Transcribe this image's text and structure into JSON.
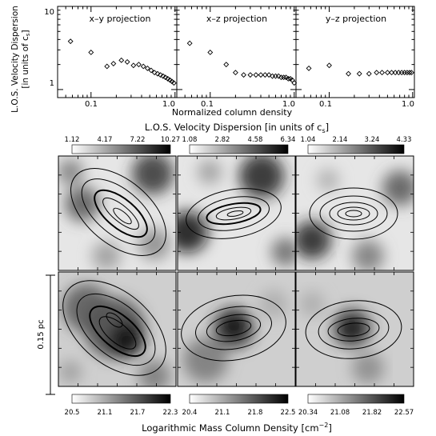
{
  "top_row": {
    "ylabel_line1": "L.O.S. Velocity Dispersion",
    "ylabel_line2": "[in units of c",
    "ylabel_sub": "s",
    "ylabel_close": "]",
    "xlabel": "Normalized column density",
    "y_tick_labels": [
      "10",
      "1"
    ],
    "x_tick_labels": [
      "0.1",
      "1.0"
    ]
  },
  "chart_data": [
    {
      "type": "scatter",
      "title": "x–y projection",
      "xscale": "log",
      "yscale": "log",
      "xlim": [
        0.04,
        1.05
      ],
      "ylim": [
        0.8,
        10
      ],
      "x": [
        0.057,
        0.1,
        0.155,
        0.185,
        0.23,
        0.27,
        0.32,
        0.37,
        0.42,
        0.47,
        0.52,
        0.57,
        0.62,
        0.67,
        0.72,
        0.77,
        0.82,
        0.87,
        0.92,
        0.97
      ],
      "y": [
        3.8,
        2.8,
        1.9,
        2.05,
        2.25,
        2.15,
        1.95,
        2.0,
        1.9,
        1.8,
        1.7,
        1.6,
        1.55,
        1.5,
        1.45,
        1.4,
        1.35,
        1.3,
        1.25,
        1.2
      ]
    },
    {
      "type": "scatter",
      "title": "x–z projection",
      "xscale": "log",
      "yscale": "log",
      "xlim": [
        0.04,
        1.05
      ],
      "ylim": [
        0.8,
        10
      ],
      "x": [
        0.057,
        0.1,
        0.155,
        0.2,
        0.25,
        0.3,
        0.35,
        0.4,
        0.45,
        0.5,
        0.55,
        0.6,
        0.65,
        0.7,
        0.75,
        0.8,
        0.85,
        0.9,
        0.95,
        1.0
      ],
      "y": [
        3.6,
        2.8,
        2.0,
        1.6,
        1.5,
        1.5,
        1.5,
        1.5,
        1.5,
        1.5,
        1.45,
        1.45,
        1.45,
        1.4,
        1.4,
        1.4,
        1.35,
        1.35,
        1.3,
        1.2
      ]
    },
    {
      "type": "scatter",
      "title": "y–z projection",
      "xscale": "log",
      "yscale": "log",
      "xlim": [
        0.04,
        1.05
      ],
      "ylim": [
        0.8,
        10
      ],
      "x": [
        0.057,
        0.1,
        0.17,
        0.23,
        0.3,
        0.37,
        0.43,
        0.5,
        0.56,
        0.62,
        0.68,
        0.74,
        0.8,
        0.86,
        0.92,
        0.97
      ],
      "y": [
        1.8,
        1.95,
        1.55,
        1.55,
        1.55,
        1.6,
        1.6,
        1.6,
        1.6,
        1.6,
        1.6,
        1.6,
        1.6,
        1.6,
        1.6,
        1.6
      ]
    }
  ],
  "velocity_colorbars": {
    "title_main": "L.O.S. Velocity Dispersion [in units of c",
    "title_sub": "s",
    "title_close": "]",
    "bars": [
      {
        "ticks": [
          "1.12",
          "4.17",
          "7.22",
          "10.27"
        ]
      },
      {
        "ticks": [
          "1.08",
          "2.82",
          "4.58",
          "6.34"
        ]
      },
      {
        "ticks": [
          "1.04",
          "2.14",
          "3.24",
          "4.33"
        ]
      }
    ]
  },
  "density_colorbars": {
    "title_main": "Logarithmic Mass Column Density [cm",
    "title_sup": "−2",
    "title_close": "]",
    "bars": [
      {
        "ticks": [
          "20.5",
          "21.1",
          "21.7",
          "22.3"
        ]
      },
      {
        "ticks": [
          "20.4",
          "21.1",
          "21.8",
          "22.5"
        ]
      },
      {
        "ticks": [
          "20.34",
          "21.08",
          "21.82",
          "22.57"
        ]
      }
    ]
  },
  "scale_bar": {
    "label": "0.15 pc"
  },
  "colors": {
    "ink": "#000000",
    "background": "#ffffff"
  }
}
